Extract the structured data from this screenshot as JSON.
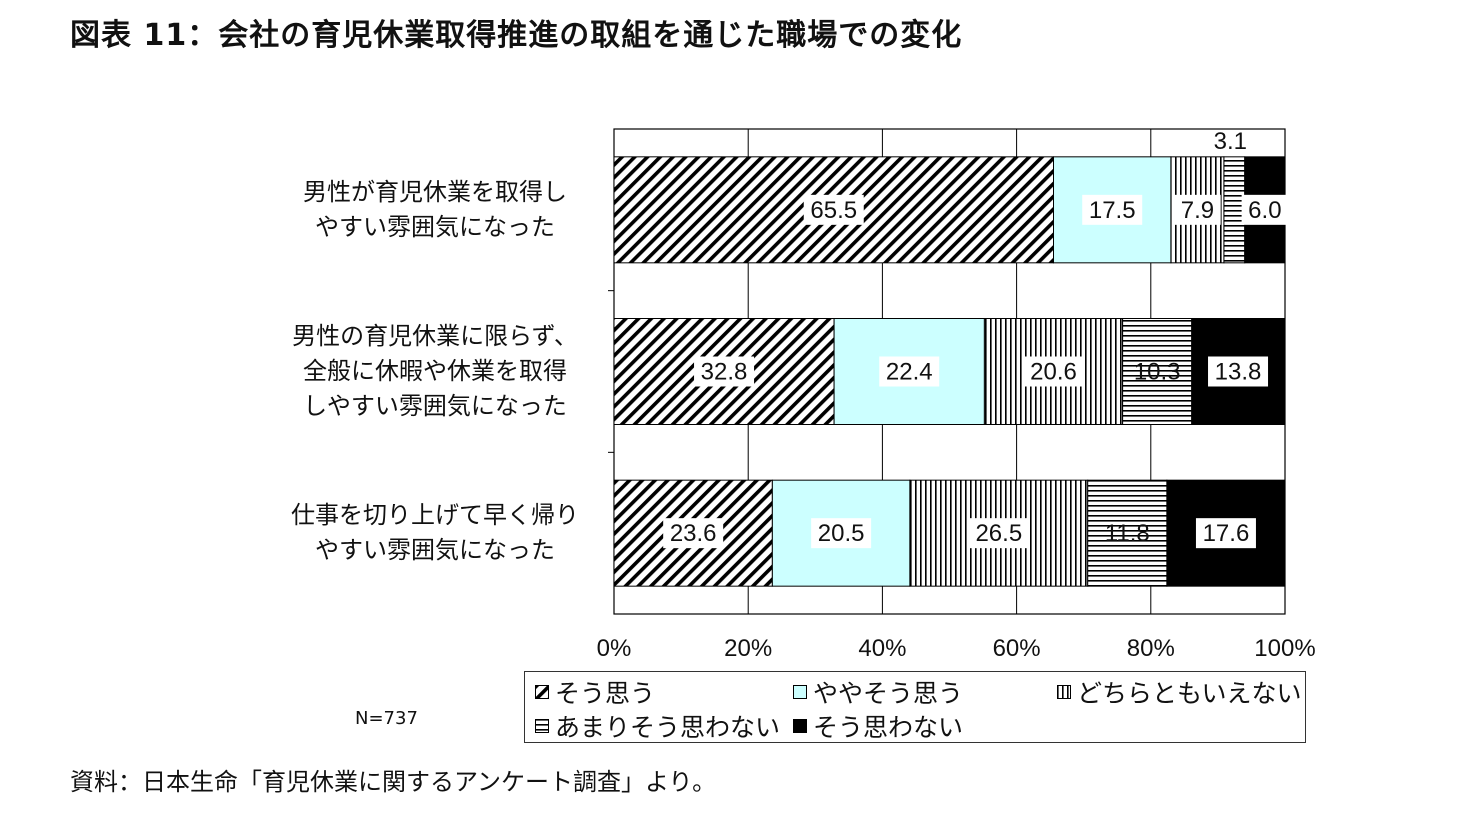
{
  "title": "図表 11：会社の育児休業取得推進の取組を通じた職場での変化",
  "note": "N=737",
  "source": "資料：日本生命「育児休業に関するアンケート調査」より。",
  "chart_data": {
    "type": "bar",
    "orientation": "horizontal",
    "stacked": "percent",
    "categories": [
      [
        "男性が育児休業を取得し",
        "やすい雰囲気になった"
      ],
      [
        "男性の育児休業に限らず、",
        "全般に休暇や休業を取得",
        "しやすい雰囲気になった"
      ],
      [
        "仕事を切り上げて早く帰り",
        "やすい雰囲気になった"
      ]
    ],
    "series": [
      {
        "name": "そう思う",
        "values": [
          65.5,
          32.8,
          23.6
        ],
        "fill": "diagonal-hatch",
        "color": "#000000"
      },
      {
        "name": "ややそう思う",
        "values": [
          17.5,
          22.4,
          20.5
        ],
        "fill": "solid",
        "color": "#CCFFFF"
      },
      {
        "name": "どちらともいえない",
        "values": [
          7.9,
          20.6,
          26.5
        ],
        "fill": "vertical-lines",
        "color": "#000000"
      },
      {
        "name": "あまりそう思わない",
        "values": [
          3.1,
          10.3,
          11.8
        ],
        "fill": "horizontal-lines",
        "color": "#000000"
      },
      {
        "name": "そう思わない",
        "values": [
          6.0,
          13.8,
          17.6
        ],
        "fill": "solid",
        "color": "#000000"
      }
    ],
    "xlim": [
      0,
      100
    ],
    "xticks": [
      "0%",
      "20%",
      "40%",
      "60%",
      "80%",
      "100%"
    ],
    "grid": true,
    "legend_position": "bottom"
  }
}
